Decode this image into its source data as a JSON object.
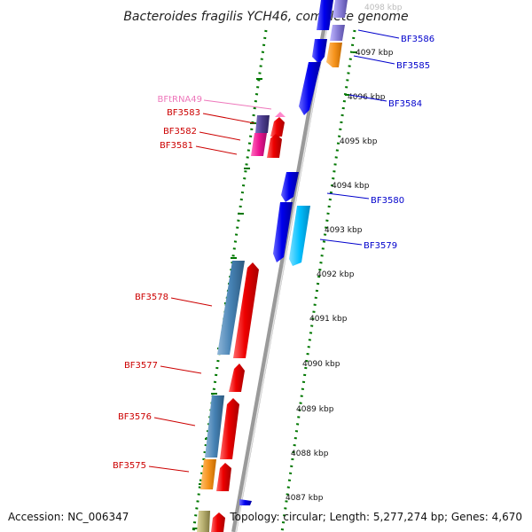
{
  "title": "Bacteroides fragilis YCH46, complete genome",
  "footer": {
    "accession": "Accession: NC_006347",
    "topology": "Topology: circular; Length: 5,277,274 bp; Genes: 4,670"
  },
  "ticks": [
    {
      "label": "4098 kbp",
      "faded": true
    },
    {
      "label": "4097 kbp",
      "faded": false
    },
    {
      "label": "4096 kbp",
      "faded": false
    },
    {
      "label": "4095 kbp",
      "faded": false
    },
    {
      "label": "4094 kbp",
      "faded": false
    },
    {
      "label": "4093 kbp",
      "faded": false
    },
    {
      "label": "4092 kbp",
      "faded": false
    },
    {
      "label": "4091 kbp",
      "faded": false
    },
    {
      "label": "4090 kbp",
      "faded": false
    },
    {
      "label": "4089 kbp",
      "faded": false
    },
    {
      "label": "4088 kbp",
      "faded": false
    },
    {
      "label": "4087 kbp",
      "faded": false
    }
  ],
  "gene_labels_right": [
    "BF3586",
    "BF3585",
    "BF3584",
    "BF3580",
    "BF3579"
  ],
  "gene_labels_left": [
    "BFtRNA49",
    "BF3583",
    "BF3582",
    "BF3581",
    "BF3578",
    "BF3577",
    "BF3576",
    "BF3575"
  ],
  "colors": {
    "backbone": "#9a9a9a",
    "forward_gene": "#ee0000",
    "reverse_gene": "#0000ee",
    "cog_steelblue": "#4682b4",
    "cog_orange": "#f7941d",
    "cog_magenta": "#ee1493",
    "cog_cyan": "#00bfff",
    "cog_slate": "#4b3c8c",
    "cog_lavender": "#8a7fd8",
    "cog_khaki": "#b5ad6e",
    "trna_pink": "#ff88cc",
    "tick_green": "#007700",
    "label_red": "#cc0000",
    "label_blue": "#0000cc",
    "label_pink": "#ee77bb",
    "tick_faded": "#bbbbbb"
  }
}
